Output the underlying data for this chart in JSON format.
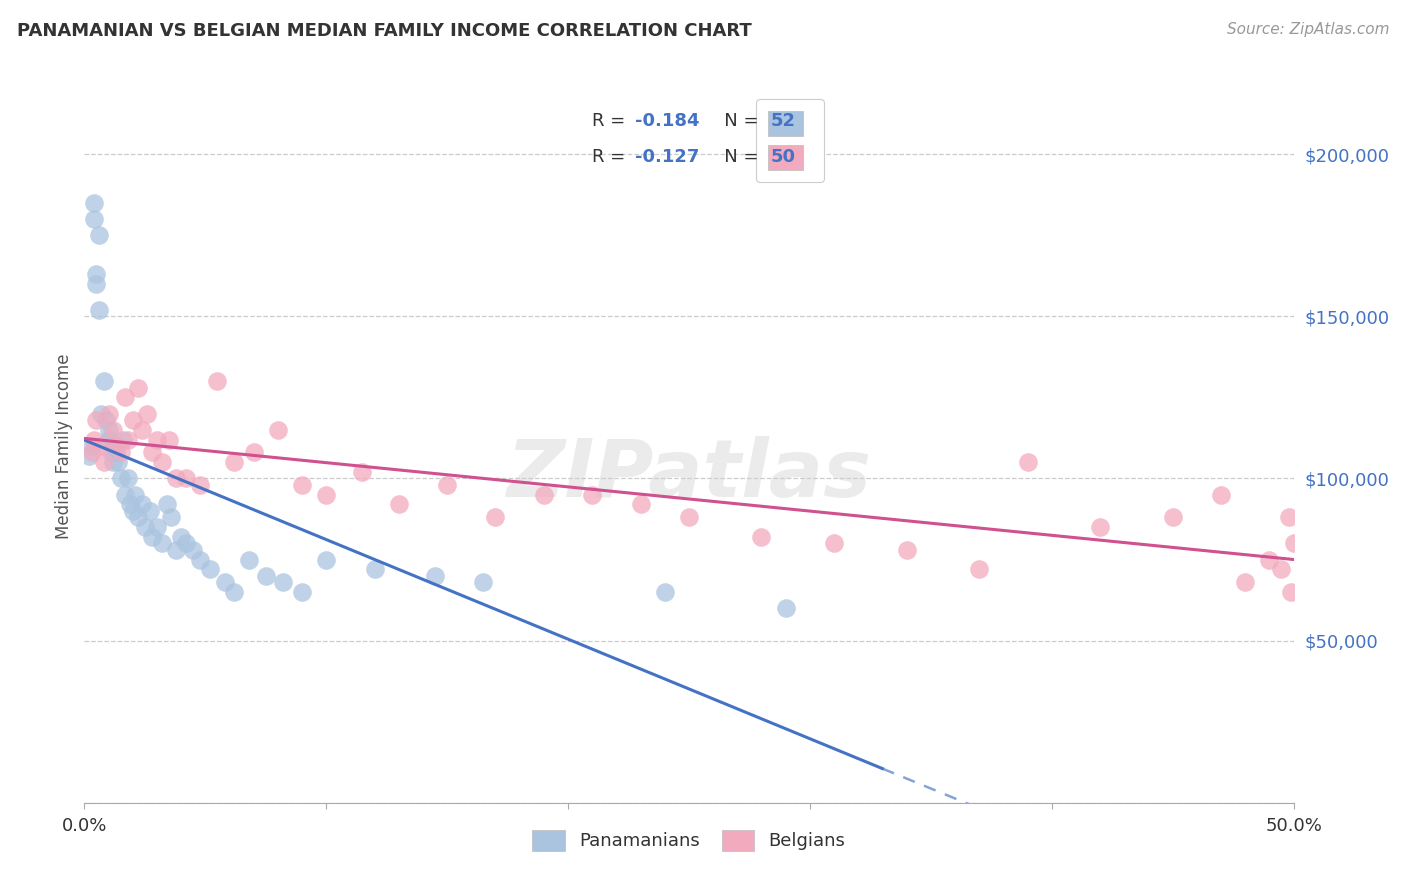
{
  "title": "PANAMANIAN VS BELGIAN MEDIAN FAMILY INCOME CORRELATION CHART",
  "source": "Source: ZipAtlas.com",
  "ylabel": "Median Family Income",
  "yticks": [
    0,
    50000,
    100000,
    150000,
    200000
  ],
  "ytick_labels": [
    "",
    "$50,000",
    "$100,000",
    "$150,000",
    "$200,000"
  ],
  "xlim": [
    0.0,
    0.5
  ],
  "ylim": [
    0,
    220000
  ],
  "pan_color": "#aac4e0",
  "bel_color": "#f2aabe",
  "pan_line_color": "#4472c4",
  "bel_line_color": "#d05090",
  "watermark": "ZIPatlas",
  "pan_x": [
    0.002,
    0.003,
    0.004,
    0.004,
    0.005,
    0.005,
    0.006,
    0.006,
    0.007,
    0.008,
    0.009,
    0.01,
    0.01,
    0.011,
    0.012,
    0.012,
    0.013,
    0.014,
    0.015,
    0.016,
    0.017,
    0.018,
    0.019,
    0.02,
    0.021,
    0.022,
    0.024,
    0.025,
    0.027,
    0.028,
    0.03,
    0.032,
    0.034,
    0.036,
    0.038,
    0.04,
    0.042,
    0.045,
    0.048,
    0.052,
    0.058,
    0.062,
    0.068,
    0.075,
    0.082,
    0.09,
    0.1,
    0.12,
    0.145,
    0.165,
    0.24,
    0.29
  ],
  "pan_y": [
    107000,
    110000,
    180000,
    185000,
    160000,
    163000,
    175000,
    152000,
    120000,
    130000,
    118000,
    115000,
    112000,
    108000,
    110000,
    105000,
    108000,
    105000,
    100000,
    112000,
    95000,
    100000,
    92000,
    90000,
    95000,
    88000,
    92000,
    85000,
    90000,
    82000,
    85000,
    80000,
    92000,
    88000,
    78000,
    82000,
    80000,
    78000,
    75000,
    72000,
    68000,
    65000,
    75000,
    70000,
    68000,
    65000,
    75000,
    72000,
    70000,
    68000,
    65000,
    60000
  ],
  "bel_x": [
    0.003,
    0.004,
    0.005,
    0.007,
    0.008,
    0.01,
    0.012,
    0.013,
    0.015,
    0.017,
    0.018,
    0.02,
    0.022,
    0.024,
    0.026,
    0.028,
    0.03,
    0.032,
    0.035,
    0.038,
    0.042,
    0.048,
    0.055,
    0.062,
    0.07,
    0.08,
    0.09,
    0.1,
    0.115,
    0.13,
    0.15,
    0.17,
    0.19,
    0.21,
    0.23,
    0.25,
    0.28,
    0.31,
    0.34,
    0.37,
    0.39,
    0.42,
    0.45,
    0.47,
    0.48,
    0.49,
    0.495,
    0.498,
    0.499,
    0.5
  ],
  "bel_y": [
    108000,
    112000,
    118000,
    110000,
    105000,
    120000,
    115000,
    110000,
    108000,
    125000,
    112000,
    118000,
    128000,
    115000,
    120000,
    108000,
    112000,
    105000,
    112000,
    100000,
    100000,
    98000,
    130000,
    105000,
    108000,
    115000,
    98000,
    95000,
    102000,
    92000,
    98000,
    88000,
    95000,
    95000,
    92000,
    88000,
    82000,
    80000,
    78000,
    72000,
    105000,
    85000,
    88000,
    95000,
    68000,
    75000,
    72000,
    88000,
    65000,
    80000
  ],
  "pan_line_x0": 0.0,
  "pan_line_x1": 0.5,
  "pan_line_solid_end": 0.33,
  "bel_line_x0": 0.0,
  "bel_line_x1": 0.5
}
